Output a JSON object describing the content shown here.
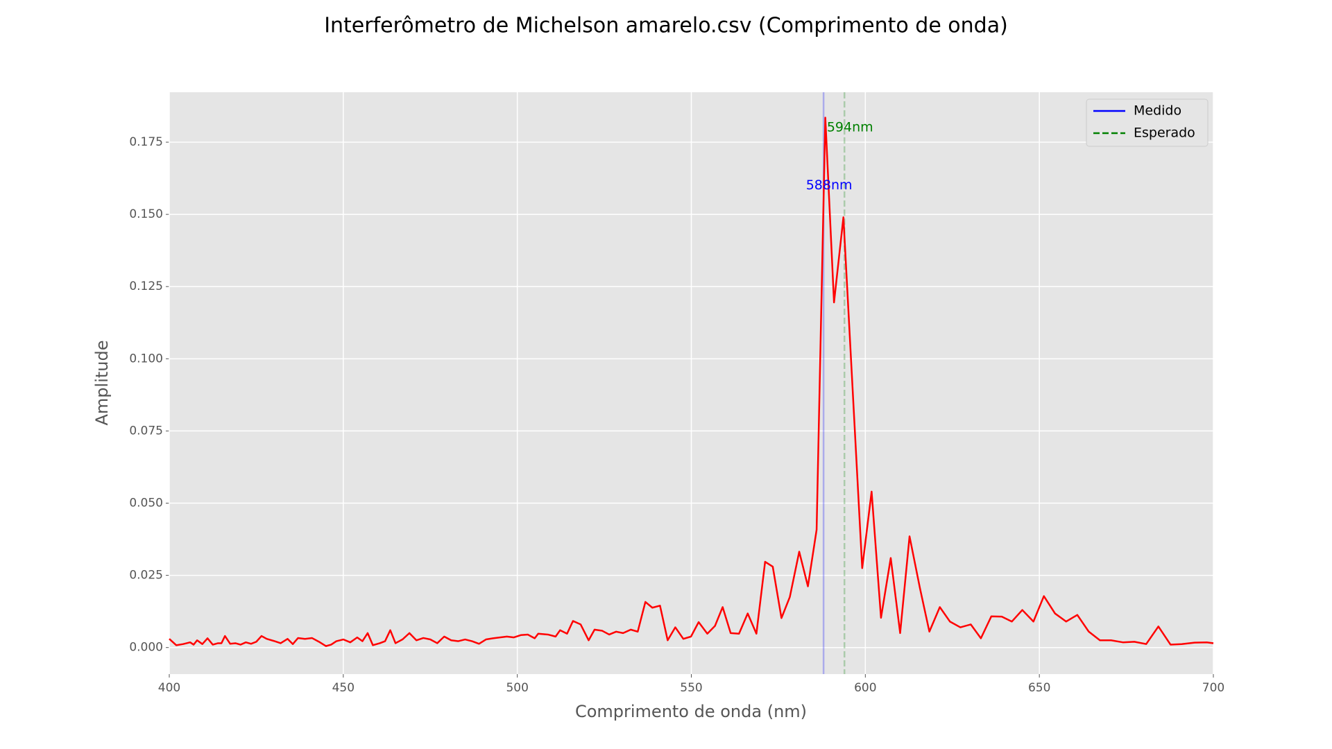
{
  "chart_data": {
    "type": "line",
    "title": "Interferômetro de Michelson amarelo.csv (Comprimento de onda)",
    "xlabel": "Comprimento de onda (nm)",
    "ylabel": "Amplitude",
    "x": [
      400,
      402,
      404,
      406,
      407,
      408,
      409.5,
      411,
      412.5,
      414,
      415,
      416,
      417.5,
      419,
      420.5,
      422,
      423.5,
      425,
      426.5,
      428,
      430,
      432,
      434,
      435.5,
      437,
      439,
      441,
      443,
      445,
      446.5,
      448,
      450,
      452,
      454,
      455.5,
      457,
      458.5,
      460.5,
      462,
      463.5,
      465,
      467,
      469,
      471,
      473,
      475,
      477,
      479,
      481,
      483,
      485,
      487,
      489,
      491,
      493,
      495,
      497,
      499,
      501,
      503,
      505,
      506,
      508.8,
      511,
      512.3,
      514.3,
      516,
      518.2,
      520.5,
      522.2,
      524.4,
      526.4,
      528.4,
      530.4,
      532.6,
      534.6,
      536.8,
      538.8,
      541,
      543.2,
      545.4,
      547.7,
      549.9,
      552.1,
      554.6,
      556.8,
      559,
      561.3,
      563.7,
      566.2,
      568.7,
      571.2,
      573.4,
      575.9,
      578.3,
      581,
      583.5,
      586,
      588.5,
      591,
      593.7,
      599.1,
      601.8,
      604.5,
      607.3,
      610,
      612.7,
      615.7,
      618.4,
      621.4,
      624.3,
      627.3,
      630.3,
      633.2,
      636.2,
      639.2,
      642.1,
      645.1,
      648.3,
      651.3,
      654.5,
      657.7,
      660.9,
      664.2,
      667.4,
      670.6,
      674,
      677.3,
      680.7,
      684.2,
      687.7,
      690.9,
      694.6,
      698.1,
      700
    ],
    "values": [
      0.003,
      0.0008,
      0.0012,
      0.0018,
      0.001,
      0.0025,
      0.0012,
      0.0032,
      0.001,
      0.0015,
      0.0015,
      0.004,
      0.0013,
      0.0015,
      0.001,
      0.0018,
      0.0013,
      0.002,
      0.004,
      0.003,
      0.0023,
      0.0015,
      0.003,
      0.0012,
      0.0033,
      0.003,
      0.0033,
      0.002,
      0.0005,
      0.001,
      0.0022,
      0.0028,
      0.0018,
      0.0035,
      0.0022,
      0.005,
      0.0008,
      0.0015,
      0.0022,
      0.006,
      0.0015,
      0.0028,
      0.005,
      0.0025,
      0.0033,
      0.0028,
      0.0015,
      0.0038,
      0.0025,
      0.0022,
      0.0028,
      0.0022,
      0.0013,
      0.0028,
      0.0032,
      0.0035,
      0.0038,
      0.0035,
      0.0043,
      0.0045,
      0.0032,
      0.0048,
      0.0045,
      0.0038,
      0.006,
      0.0048,
      0.0092,
      0.008,
      0.0025,
      0.0062,
      0.0058,
      0.0045,
      0.0055,
      0.005,
      0.0062,
      0.0055,
      0.0158,
      0.0138,
      0.0145,
      0.0025,
      0.007,
      0.003,
      0.0038,
      0.0088,
      0.0048,
      0.0075,
      0.014,
      0.005,
      0.0048,
      0.0118,
      0.0048,
      0.0297,
      0.028,
      0.0102,
      0.0175,
      0.0332,
      0.0212,
      0.0408,
      0.1835,
      0.1195,
      0.149,
      0.0275,
      0.054,
      0.0103,
      0.031,
      0.005,
      0.0385,
      0.0205,
      0.0055,
      0.014,
      0.009,
      0.007,
      0.008,
      0.0032,
      0.0108,
      0.0107,
      0.009,
      0.013,
      0.009,
      0.0178,
      0.0118,
      0.009,
      0.0113,
      0.0055,
      0.0025,
      0.0025,
      0.0018,
      0.002,
      0.0012,
      0.0073,
      0.001,
      0.0012,
      0.0017,
      0.0018,
      0.0015
    ],
    "color": "red",
    "vlines": [
      {
        "name": "Medido",
        "x": 588,
        "color": "blue",
        "style": "solid"
      },
      {
        "name": "Esperado",
        "x": 594,
        "color": "green",
        "style": "dashed"
      }
    ],
    "annotations": [
      {
        "text": "588nm",
        "x": 588,
        "y": 0.16,
        "color": "blue"
      },
      {
        "text": "594nm",
        "x": 594,
        "y": 0.18,
        "color": "green"
      }
    ],
    "xlim": [
      400,
      700
    ],
    "ylim": [
      -0.0092,
      0.1923
    ],
    "xticks": [
      400,
      450,
      500,
      550,
      600,
      650,
      700
    ],
    "yticks": [
      {
        "value": 0,
        "label": "0.000"
      },
      0.025,
      {
        "value": 0.05,
        "label": "0.050"
      },
      0.075,
      {
        "value": 0.1,
        "label": "0.100"
      },
      0.125,
      {
        "value": 0.15,
        "label": "0.150"
      },
      0.175
    ],
    "grid": true,
    "legend": "upper right"
  }
}
